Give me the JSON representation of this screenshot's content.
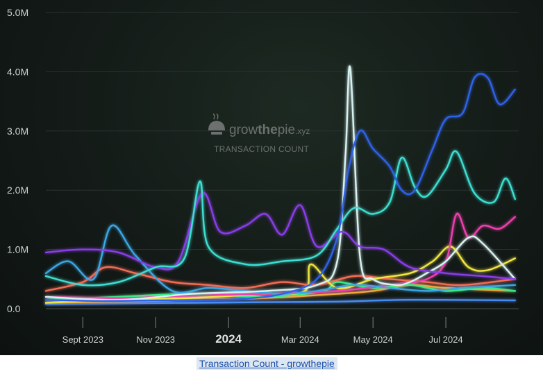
{
  "chart_data": {
    "type": "line",
    "title": "",
    "watermark": {
      "brand_a": "grow",
      "brand_b": "the",
      "brand_c": "pie",
      "brand_tld": ".xyz",
      "subtitle": "TRANSACTION COUNT"
    },
    "xlabel": "",
    "ylabel": "",
    "x_start": "2023-08-01",
    "x_end": "2024-08-31",
    "ylim": [
      0,
      5000000
    ],
    "y_ticks": [
      {
        "value": 0,
        "label": "0.0"
      },
      {
        "value": 1000000,
        "label": "1.0M"
      },
      {
        "value": 2000000,
        "label": "2.0M"
      },
      {
        "value": 3000000,
        "label": "3.0M"
      },
      {
        "value": 4000000,
        "label": "4.0M"
      },
      {
        "value": 5000000,
        "label": "5.0M"
      }
    ],
    "x_ticks": [
      {
        "date": "2023-09-01",
        "label": "Sept 2023",
        "major": false
      },
      {
        "date": "2023-11-01",
        "label": "Nov 2023",
        "major": false
      },
      {
        "date": "2024-01-01",
        "label": "2024",
        "major": true
      },
      {
        "date": "2024-03-01",
        "label": "Mar 2024",
        "major": false
      },
      {
        "date": "2024-05-01",
        "label": "May 2024",
        "major": false
      },
      {
        "date": "2024-07-01",
        "label": "Jul 2024",
        "major": false
      }
    ],
    "grid": true,
    "legend": "none",
    "series": [
      {
        "color": "#2f62e8",
        "x": [
          "2023-08-01",
          "2023-09-15",
          "2023-11-01",
          "2023-12-15",
          "2024-01-15",
          "2024-02-15",
          "2024-03-15",
          "2024-04-01",
          "2024-04-10",
          "2024-04-20",
          "2024-05-01",
          "2024-05-15",
          "2024-05-25",
          "2024-06-05",
          "2024-06-20",
          "2024-07-01",
          "2024-07-15",
          "2024-07-25",
          "2024-08-05",
          "2024-08-15",
          "2024-08-28"
        ],
        "values": [
          150000,
          130000,
          140000,
          150000,
          170000,
          250000,
          500000,
          1200000,
          2300000,
          3000000,
          2700000,
          2400000,
          2000000,
          2000000,
          2700000,
          3200000,
          3300000,
          3900000,
          3900000,
          3450000,
          3700000
        ]
      },
      {
        "color": "#3ddfd2",
        "x": [
          "2023-08-01",
          "2023-09-01",
          "2023-10-01",
          "2023-11-01",
          "2023-11-25",
          "2023-12-08",
          "2023-12-15",
          "2024-01-15",
          "2024-02-15",
          "2024-03-15",
          "2024-04-01",
          "2024-04-15",
          "2024-05-01",
          "2024-05-15",
          "2024-05-25",
          "2024-06-05",
          "2024-06-15",
          "2024-07-01",
          "2024-07-10",
          "2024-07-25",
          "2024-08-10",
          "2024-08-20",
          "2024-08-28"
        ],
        "values": [
          550000,
          400000,
          450000,
          700000,
          850000,
          2150000,
          1050000,
          750000,
          800000,
          900000,
          1350000,
          1700000,
          1600000,
          1800000,
          2550000,
          2050000,
          1900000,
          2350000,
          2650000,
          1950000,
          1800000,
          2200000,
          1850000
        ]
      },
      {
        "color": "#8a3ee8",
        "x": [
          "2023-08-01",
          "2023-09-01",
          "2023-10-01",
          "2023-11-01",
          "2023-11-20",
          "2023-12-10",
          "2023-12-25",
          "2024-01-15",
          "2024-02-01",
          "2024-02-15",
          "2024-03-01",
          "2024-03-15",
          "2024-04-05",
          "2024-04-20",
          "2024-05-10",
          "2024-06-01",
          "2024-07-01",
          "2024-08-01",
          "2024-08-28"
        ],
        "values": [
          950000,
          1000000,
          950000,
          700000,
          800000,
          1950000,
          1300000,
          1400000,
          1600000,
          1250000,
          1750000,
          1050000,
          1300000,
          1050000,
          1000000,
          700000,
          600000,
          550000,
          500000
        ]
      },
      {
        "color": "#d8f2f2",
        "x": [
          "2023-08-01",
          "2023-10-01",
          "2023-12-01",
          "2024-02-01",
          "2024-03-15",
          "2024-04-01",
          "2024-04-08",
          "2024-04-12",
          "2024-04-20",
          "2024-05-01",
          "2024-05-20",
          "2024-06-01",
          "2024-06-15",
          "2024-07-01",
          "2024-07-20",
          "2024-08-01",
          "2024-08-28"
        ],
        "values": [
          200000,
          150000,
          250000,
          300000,
          400000,
          800000,
          2600000,
          4050000,
          900000,
          500000,
          400000,
          450000,
          600000,
          800000,
          1200000,
          1100000,
          500000
        ]
      },
      {
        "color": "#3aa7e6",
        "x": [
          "2023-08-01",
          "2023-08-20",
          "2023-09-10",
          "2023-09-25",
          "2023-10-15",
          "2023-11-15",
          "2023-12-15",
          "2024-01-15",
          "2024-02-15",
          "2024-03-15",
          "2024-04-15",
          "2024-05-15",
          "2024-06-15",
          "2024-07-15",
          "2024-08-28"
        ],
        "values": [
          600000,
          800000,
          500000,
          1400000,
          900000,
          300000,
          350000,
          300000,
          250000,
          300000,
          400000,
          350000,
          300000,
          350000,
          400000
        ]
      },
      {
        "color": "#ee3fae",
        "x": [
          "2023-08-01",
          "2023-10-01",
          "2023-12-01",
          "2024-02-01",
          "2024-04-01",
          "2024-05-15",
          "2024-06-15",
          "2024-07-01",
          "2024-07-10",
          "2024-07-20",
          "2024-08-01",
          "2024-08-15",
          "2024-08-28"
        ],
        "values": [
          200000,
          180000,
          220000,
          250000,
          300000,
          400000,
          500000,
          800000,
          1600000,
          1200000,
          1400000,
          1350000,
          1550000
        ]
      },
      {
        "color": "#f0e640",
        "x": [
          "2023-08-01",
          "2023-10-01",
          "2023-12-01",
          "2024-02-01",
          "2024-03-05",
          "2024-03-10",
          "2024-04-01",
          "2024-05-01",
          "2024-06-01",
          "2024-06-20",
          "2024-07-05",
          "2024-07-20",
          "2024-08-05",
          "2024-08-28"
        ],
        "values": [
          100000,
          150000,
          180000,
          250000,
          300000,
          750000,
          350000,
          500000,
          600000,
          800000,
          1050000,
          700000,
          650000,
          850000
        ]
      },
      {
        "color": "#f46d55",
        "x": [
          "2023-08-01",
          "2023-09-01",
          "2023-09-20",
          "2023-10-15",
          "2023-11-15",
          "2023-12-15",
          "2024-01-15",
          "2024-02-15",
          "2024-03-15",
          "2024-04-15",
          "2024-05-15",
          "2024-06-15",
          "2024-07-15",
          "2024-08-28"
        ],
        "values": [
          300000,
          450000,
          700000,
          600000,
          450000,
          400000,
          350000,
          450000,
          400000,
          550000,
          500000,
          450000,
          400000,
          500000
        ]
      },
      {
        "color": "#3ce88a",
        "x": [
          "2023-08-01",
          "2023-10-01",
          "2023-12-01",
          "2024-02-01",
          "2024-03-20",
          "2024-04-01",
          "2024-05-01",
          "2024-06-01",
          "2024-07-01",
          "2024-08-01",
          "2024-08-28"
        ],
        "values": [
          150000,
          200000,
          250000,
          200000,
          300000,
          450000,
          350000,
          400000,
          300000,
          350000,
          300000
        ]
      },
      {
        "color": "#f2a640",
        "x": [
          "2023-08-01",
          "2023-10-01",
          "2023-12-01",
          "2024-02-01",
          "2024-04-01",
          "2024-05-01",
          "2024-06-01",
          "2024-07-01",
          "2024-08-28"
        ],
        "values": [
          100000,
          120000,
          150000,
          180000,
          250000,
          300000,
          400000,
          350000,
          300000
        ]
      },
      {
        "color": "#4a8cf0",
        "x": [
          "2023-08-01",
          "2023-10-01",
          "2023-12-01",
          "2024-02-01",
          "2024-04-01",
          "2024-06-01",
          "2024-08-28"
        ],
        "values": [
          80000,
          90000,
          100000,
          110000,
          120000,
          150000,
          140000
        ]
      }
    ]
  },
  "caption": {
    "link_text": "Transaction Count - growthepie"
  }
}
